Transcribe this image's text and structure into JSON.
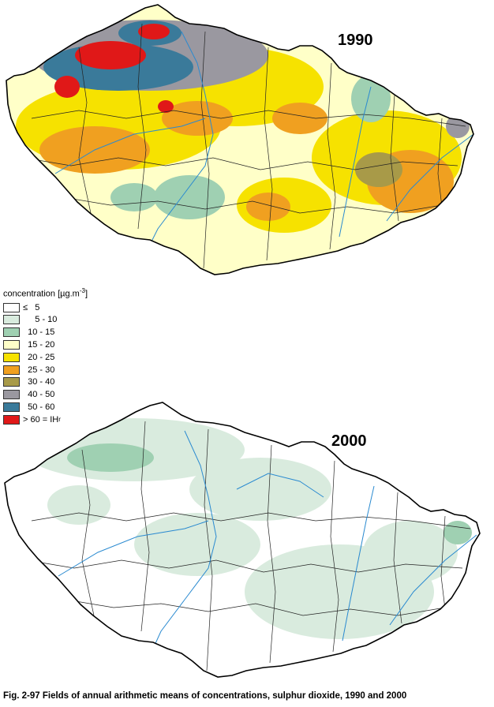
{
  "maps": [
    {
      "year": "1990"
    },
    {
      "year": "2000"
    }
  ],
  "legend": {
    "title": "concentration [µg.m",
    "title_sup": "-3",
    "title_close": "]",
    "classes": [
      {
        "label": "≤   5",
        "color": "#ffffff"
      },
      {
        "label": "     5 - 10",
        "color": "#d9ebde"
      },
      {
        "label": "  10 - 15",
        "color": "#9fd0b2"
      },
      {
        "label": "  15 - 20",
        "color": "#ffffc8"
      },
      {
        "label": "  20 - 25",
        "color": "#f6e200"
      },
      {
        "label": "  25 - 30",
        "color": "#f0a020"
      },
      {
        "label": "  30 - 40",
        "color": "#a89a48"
      },
      {
        "label": "  40 - 50",
        "color": "#9a98a0"
      },
      {
        "label": "  50 - 60",
        "color": "#3a7a9a"
      },
      {
        "label": "> 60 = IH",
        "sub": "r",
        "color": "#e01818"
      }
    ]
  },
  "colors": {
    "border": "#000000",
    "rivers": "#2a8ad0",
    "districts": "#222222"
  },
  "caption": "Fig. 2-97  Fields of annual arithmetic means of concentrations, sulphur dioxide, 1990 and 2000"
}
